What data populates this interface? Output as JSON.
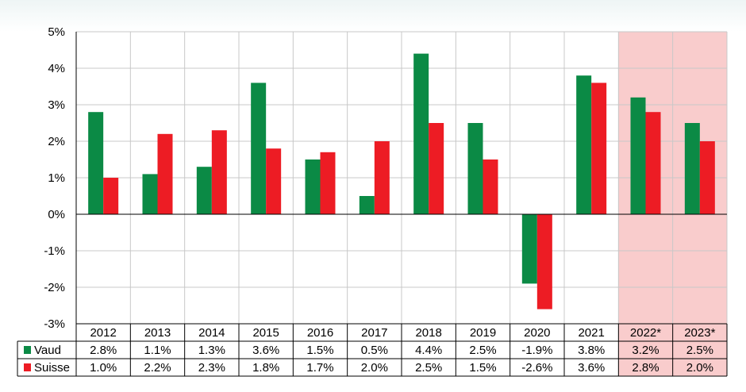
{
  "chart_data": {
    "type": "bar",
    "categories": [
      "2012",
      "2013",
      "2014",
      "2015",
      "2016",
      "2017",
      "2018",
      "2019",
      "2020",
      "2021",
      "2022*",
      "2023*"
    ],
    "series": [
      {
        "name": "Vaud",
        "values": [
          2.8,
          1.1,
          1.3,
          3.6,
          1.5,
          0.5,
          4.4,
          2.5,
          -1.9,
          3.8,
          3.2,
          2.5
        ],
        "labels": [
          "2.8%",
          "1.1%",
          "1.3%",
          "3.6%",
          "1.5%",
          "0.5%",
          "4.4%",
          "2.5%",
          "-1.9%",
          "3.8%",
          "3.2%",
          "2.5%"
        ],
        "color": "#0b8a45"
      },
      {
        "name": "Suisse",
        "values": [
          1.0,
          2.2,
          2.3,
          1.8,
          1.7,
          2.0,
          2.5,
          1.5,
          -2.6,
          3.6,
          2.8,
          2.0
        ],
        "labels": [
          "1.0%",
          "2.2%",
          "2.3%",
          "1.8%",
          "1.7%",
          "2.0%",
          "2.5%",
          "1.5%",
          "-2.6%",
          "3.6%",
          "2.8%",
          "2.0%"
        ],
        "color": "#ed1c24"
      }
    ],
    "ylim": [
      -3,
      5
    ],
    "yticks": [
      5,
      4,
      3,
      2,
      1,
      0,
      -1,
      -2,
      -3
    ],
    "ytick_labels": [
      "5%",
      "4%",
      "3%",
      "2%",
      "1%",
      "0%",
      "-1%",
      "-2%",
      "-3%"
    ],
    "forecast_categories": [
      "2022*",
      "2023*"
    ],
    "forecast_shade_color": "#f9cccc",
    "grid": true,
    "legend": "data-table",
    "title": "",
    "xlabel": "",
    "ylabel": ""
  }
}
